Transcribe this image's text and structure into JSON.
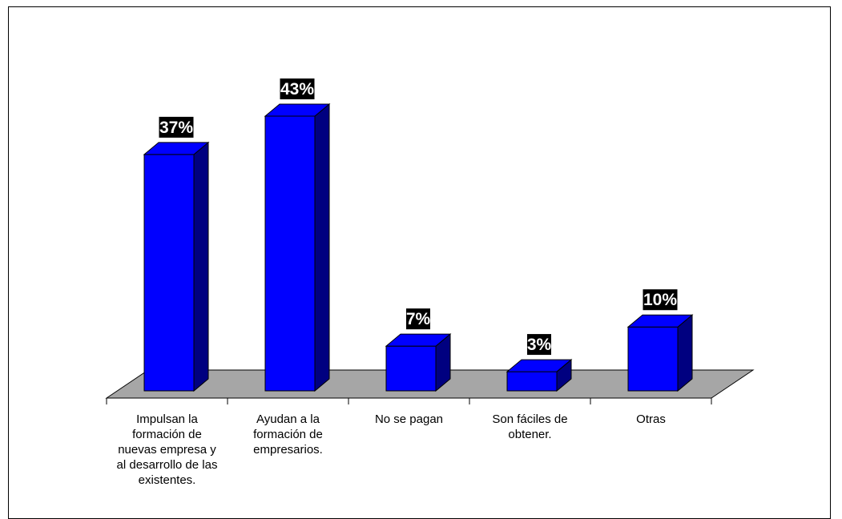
{
  "chart_data": {
    "type": "bar",
    "style": "3d-column",
    "categories": [
      [
        "Impulsan la",
        "formación de",
        "nuevas empresa y",
        "al desarrollo de las",
        "existentes."
      ],
      [
        "Ayudan a la",
        "formación de",
        "empresarios."
      ],
      [
        "No se pagan"
      ],
      [
        "Son fáciles de",
        "obtener."
      ],
      [
        "Otras"
      ]
    ],
    "values": [
      37,
      43,
      7,
      3,
      10
    ],
    "value_labels": [
      "37%",
      "43%",
      "7%",
      "3%",
      "10%"
    ],
    "title": "",
    "xlabel": "",
    "ylabel": "",
    "ylim": [
      0,
      43
    ],
    "grid": false,
    "legend": "none",
    "colors": {
      "bar_front": "#0000ff",
      "bar_side": "#000080",
      "bar_top": "#0000ff",
      "floor": "#a6a6a6",
      "label_bg": "#000000",
      "label_text": "#ffffff",
      "outline": "#000000"
    }
  }
}
